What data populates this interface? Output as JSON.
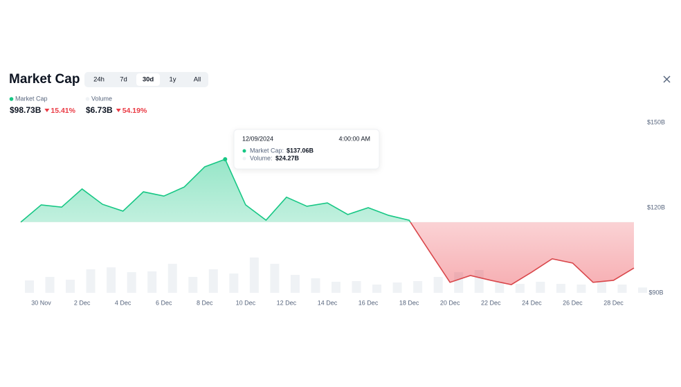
{
  "header": {
    "title": "Market Cap",
    "tabs": [
      "24h",
      "7d",
      "30d",
      "1y",
      "All"
    ],
    "active_tab": 2
  },
  "summary": [
    {
      "value": "$98.73B",
      "change": "15.41%"
    },
    {
      "value": "$6.73B",
      "change": "54.19%"
    }
  ],
  "tooltip": {
    "date": "12/09/2024",
    "time": "4:00:00 AM",
    "index": 10,
    "rows": [
      {
        "label": "Market Cap:",
        "value": "$137.06B"
      },
      {
        "label": "Volume:",
        "value": "$24.27B"
      }
    ]
  },
  "chart_data": {
    "type": "area",
    "categories": [
      null,
      "30 Nov",
      null,
      "2 Dec",
      null,
      "4 Dec",
      null,
      "6 Dec",
      null,
      "8 Dec",
      null,
      "10 Dec",
      null,
      "12 Dec",
      null,
      "14 Dec",
      null,
      "16 Dec",
      null,
      "18 Dec",
      null,
      "20 Dec",
      null,
      "22 Dec",
      null,
      "24 Dec",
      null,
      "26 Dec",
      null,
      "28 Dec",
      null
    ],
    "series": [
      {
        "name": "Market Cap",
        "color": "#16c784",
        "negative_color": "#d9464a",
        "values": [
          114.9,
          121.0,
          120.2,
          126.6,
          121.2,
          118.8,
          125.6,
          124.1,
          127.3,
          134.4,
          137.06,
          121.0,
          115.6,
          123.7,
          120.5,
          121.7,
          117.6,
          120.0,
          117.3,
          115.6,
          104.6,
          93.7,
          96.1,
          94.4,
          92.9,
          97.3,
          102.0,
          100.5,
          93.7,
          94.4,
          98.73
        ]
      },
      {
        "name": "Volume",
        "color": "#eff2f5",
        "axis": "y2",
        "values": [
          15.6,
          20,
          16.5,
          29.6,
          32,
          26,
          27,
          36.5,
          20,
          29.6,
          24.27,
          44.4,
          36.5,
          22.6,
          18.3,
          13.9,
          14.8,
          10.4,
          13,
          14.8,
          20,
          26,
          28.7,
          13.9,
          11.3,
          13.9,
          11.3,
          10.4,
          13.9,
          10.4,
          6.73
        ]
      }
    ],
    "ylim": [
      90,
      150
    ],
    "yticks": [
      {
        "value": 90,
        "label": "$90B"
      },
      {
        "value": 120,
        "label": "$120B"
      },
      {
        "value": 150,
        "label": "$150B"
      }
    ],
    "y2lim": [
      0,
      214
    ]
  }
}
